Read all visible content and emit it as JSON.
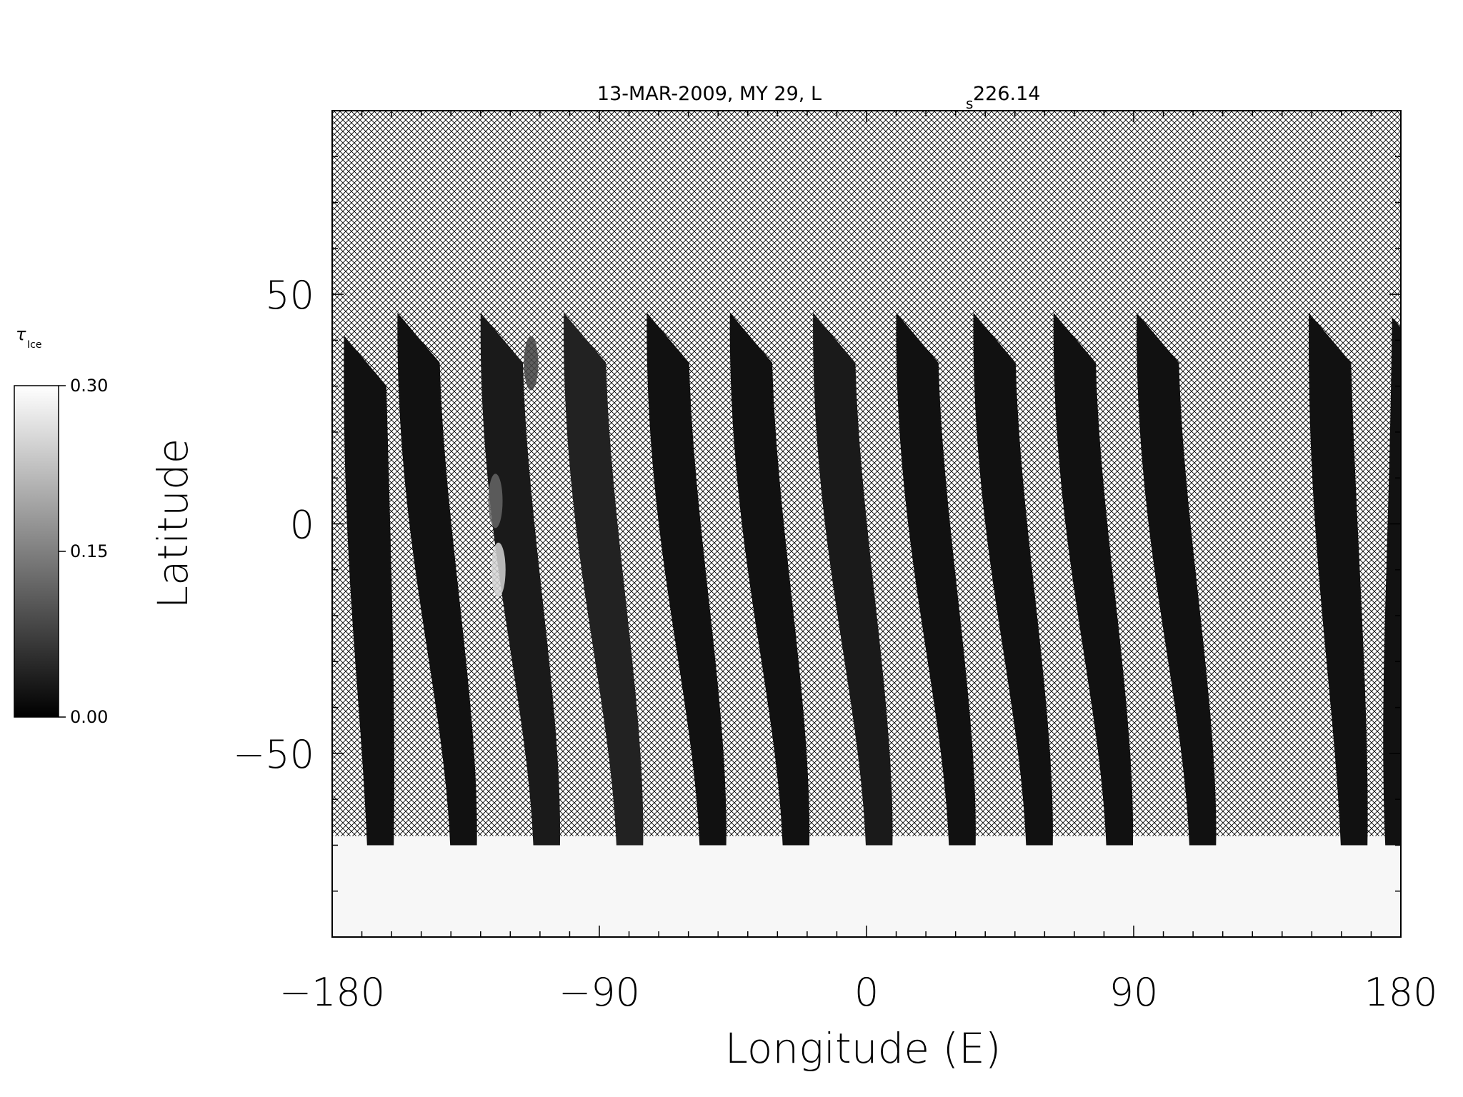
{
  "chart_data": {
    "type": "heatmap",
    "title": "13-MAR-2009, MY 29,  L",
    "title_subscript": "s",
    "title_suffix": " 226.14",
    "xlabel": "Longitude (E)",
    "ylabel": "Latitude",
    "xlim": [
      -180,
      180
    ],
    "ylim": [
      -90,
      90
    ],
    "x_ticks": [
      -180,
      -90,
      0,
      90,
      180
    ],
    "x_tick_labels": [
      "−180",
      "−90",
      "0",
      "90",
      "180"
    ],
    "y_ticks": [
      -50,
      0,
      50
    ],
    "y_tick_labels": [
      "−50",
      "0",
      "50"
    ],
    "colorbar": {
      "label_symbol": "τ",
      "label_subscript": "Ice",
      "min": 0.0,
      "max": 0.3,
      "tick_labels": [
        "0.00",
        "0.15",
        "0.30"
      ],
      "tick_values": [
        0.0,
        0.15,
        0.3
      ],
      "colormap": "grayscale"
    },
    "no_data_pattern": "crosshatch",
    "swaths": [
      {
        "lon_north": -176,
        "lon_south": -163,
        "lat_top": 41,
        "value": 0.02
      },
      {
        "lon_north": -158,
        "lon_south": -135,
        "lat_top": 46,
        "value": 0.02
      },
      {
        "lon_north": -130,
        "lon_south": -107,
        "lat_top": 46,
        "value": 0.03
      },
      {
        "lon_north": -102,
        "lon_south": -79,
        "lat_top": 46,
        "value": 0.04
      },
      {
        "lon_north": -74,
        "lon_south": -51,
        "lat_top": 46,
        "value": 0.02
      },
      {
        "lon_north": -46,
        "lon_south": -23,
        "lat_top": 46,
        "value": 0.02
      },
      {
        "lon_north": -18,
        "lon_south": 5,
        "lat_top": 46,
        "value": 0.03
      },
      {
        "lon_north": 10,
        "lon_south": 33,
        "lat_top": 46,
        "value": 0.02
      },
      {
        "lon_north": 36,
        "lon_south": 59,
        "lat_top": 46,
        "value": 0.02
      },
      {
        "lon_north": 63,
        "lon_south": 86,
        "lat_top": 46,
        "value": 0.02
      },
      {
        "lon_north": 91,
        "lon_south": 114,
        "lat_top": 46,
        "value": 0.02
      },
      {
        "lon_north": 149,
        "lon_south": 165,
        "lat_top": 46,
        "value": 0.02
      },
      {
        "lon_north": 177,
        "lon_south": 180,
        "lat_top": 45,
        "value": 0.02
      }
    ],
    "bright_features": [
      {
        "lon": -124,
        "lat": -10,
        "value": 0.25
      },
      {
        "lon": -125,
        "lat": 5,
        "value": 0.12
      },
      {
        "lon": -113,
        "lat": 35,
        "value": 0.08
      }
    ],
    "polar_ice_region": {
      "lat_min": -90,
      "lat_max": -68,
      "value": 0.29
    }
  }
}
